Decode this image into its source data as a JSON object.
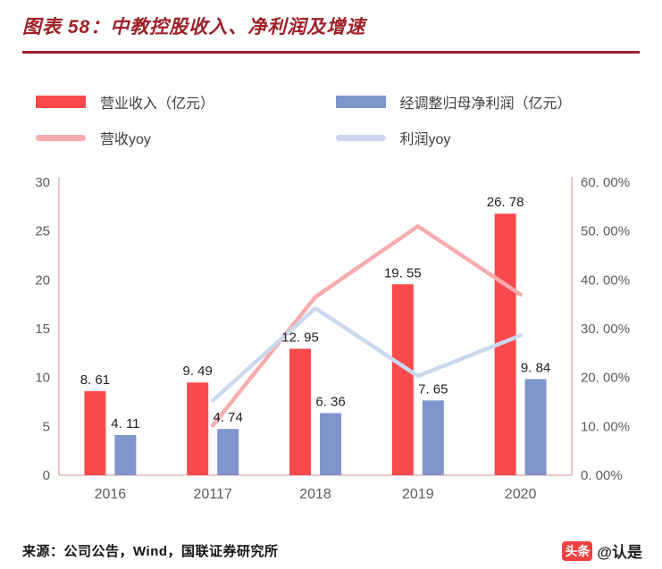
{
  "header": {
    "title": "图表 58：中教控股收入、净利润及增速"
  },
  "chart_data": {
    "type": "bar+line combo (bars on left axis, yoy lines on right axis)",
    "categories": [
      "2016",
      "20117",
      "2018",
      "2019",
      "2020"
    ],
    "bar_series": [
      {
        "name": "营业收入（亿元）",
        "color": "#F8494C",
        "axis": "left",
        "values": [
          8.61,
          9.49,
          12.95,
          19.55,
          26.78
        ],
        "labels": [
          "8. 61",
          "9. 49",
          "12. 95",
          "19. 55",
          "26. 78"
        ]
      },
      {
        "name": "经调整归母净利润（亿元）",
        "color": "#7E96CB",
        "axis": "left",
        "values": [
          4.11,
          4.74,
          6.36,
          7.65,
          9.84
        ],
        "labels": [
          "4. 11",
          "4. 74",
          "6. 36",
          "7. 65",
          "9. 84"
        ]
      }
    ],
    "line_series": [
      {
        "name": "营收yoy",
        "color": "#F9ABAC",
        "axis": "right",
        "values": [
          null,
          10.2,
          36.5,
          51.0,
          37.0
        ]
      },
      {
        "name": "利润yoy",
        "color": "#C9D8EE",
        "axis": "right",
        "values": [
          null,
          15.3,
          34.2,
          20.3,
          28.6
        ]
      }
    ],
    "left_axis": {
      "min": 0,
      "max": 30,
      "step": 5,
      "ticks": [
        "0",
        "5",
        "10",
        "15",
        "20",
        "25",
        "30"
      ]
    },
    "right_axis": {
      "min": 0,
      "max": 60,
      "step": 10,
      "ticks": [
        "0. 00%",
        "10. 00%",
        "20. 00%",
        "30. 00%",
        "40. 00%",
        "50. 00%",
        "60. 00%"
      ]
    },
    "axis_color": "#E2B6B6",
    "grid": "off",
    "legend_position": "top"
  },
  "footer": {
    "source": "来源：公司公告，Wind，国联证券研究所",
    "watermark_logo": "头条",
    "watermark_handle": "@认是"
  }
}
